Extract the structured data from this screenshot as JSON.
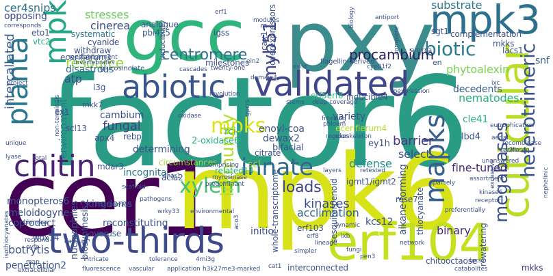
{
  "wordcloud": {
    "colors": {
      "yellow": "#d8e219",
      "lime": "#a0da39",
      "green": "#4ac16d",
      "teal": "#1fa187",
      "cyan": "#277f8e",
      "blue": "#365c8d",
      "indigo": "#46327e",
      "purple": "#440154"
    },
    "words": {
      "factor6": "factor6",
      "cer1": "cer1",
      "mpk6": "mpk6",
      "pxy": "pxy",
      "gcc": "gcc",
      "validated": "validated",
      "abiotic": "abiotic",
      "erf104": "erf104",
      "two_thirds": "two-thirds",
      "cuticular": "cuticular",
      "mpk3": "mpk3",
      "chitin": "chitin",
      "planta": "planta",
      "mpk": "mpk",
      "innate": "innate",
      "mapks": "mapks",
      "mpks": "mpks",
      "xylem": "xylem",
      "biotic": "biotic",
      "heterotrimeric": "heterotrimeric",
      "procambium": "procambium",
      "centromere": "centromere",
      "myb51": "myb51",
      "megabases": "megabases",
      "immunity": "immunity",
      "resource": "resource",
      "loads": "loads",
      "intercallated": "intercallated",
      "cer4snips": "cer4snips",
      "stresses": "stresses",
      "cinerea": "cinerea",
      "opposing": "opposing",
      "substrate": "substrate",
      "phytoalexin": "phytoalexin",
      "nematodes": "nematodes",
      "decedents": "decedents",
      "variety": "variety",
      "cambium": "cambium",
      "fungal": "fungal",
      "barrier": "barrier",
      "kinases": "kinases",
      "binary": "binary",
      "select": "select",
      "defense": "defense",
      "botrytis": "botrytis",
      "acclimation": "acclimation",
      "fine_tuned": "fine-tuned",
      "mkks": "mkks",
      "snf": "snf",
      "environment": "environment",
      "atp": "atp",
      "disastrous": "disastrous",
      "eto1": "eto1",
      "vtc2": "vtc2",
      "systematic": "systematic",
      "cyanide": "cyanide",
      "withdraw": "withdraw",
      "ecerifierum1": "ecerifierum1",
      "analogue": "analogue",
      "pbi425": "pbi425",
      "igss": "igss",
      "erf5erf6": "erf5erf6",
      "inducible4": "inducible4",
      "enoyl_coa": "enoyl-coa",
      "dewax2": "dewax2",
      "bifacial": "bifacial",
      "citrate": "citrate",
      "rci4": "rci4",
      "oxidase_2": "2-oxidase6",
      "ey1h": "ey1h",
      "lbd4": "lbd4",
      "cle41": "cle41",
      "ecerifierum4": "ecerifierum4",
      "rebp": "rebp",
      "determining": "determining",
      "apx4": "apx4",
      "mdar3": "mdar3",
      "incognita": "incognita",
      "circumstances": "circumstances",
      "scl": "scl",
      "related14": "related14",
      "acla2": "acla2",
      "igmt1_igmt2": "igmt1/igmt2",
      "rose7": "rose7",
      "alkane_forming": "alkane-forming",
      "thiocyanate": "thiocyanate",
      "monopteros6": "monopteros6",
      "meloidogyne": "meloidogyne",
      "coproduct": "coproduct",
      "kingdoms": "kingdoms",
      "reconstituting": "reconstituting",
      "nucleophiles": "nucleophiles",
      "biosynthesis2": "biosynthesis2",
      "wox14": "wox14",
      "overuse": "overuse",
      "penetration2": "penetration2",
      "sesquiterpenoid": "sesquiterpenoid",
      "whole_transcriptome": "whole-transcriptome",
      "kcs12": "kcs12",
      "initio": "initio",
      "erf103": "erf103",
      "interconnected": "interconnected",
      "chitooctaose": "chitooctaose",
      "rewatering": "rewatering",
      "complementation": "complementation",
      "sgt1": "sgt1",
      "lacs1": "lacs1",
      "cax1_3": "cax1-3",
      "milestones": "milestones",
      "overexpressors": "overexpressors",
      "inducibility": "inducibility",
      "mkk7": "mkk7",
      "i3g": "i3g",
      "ex1": "ex1",
      "scl13": "scl13",
      "glucosinolate": "glucosinolate",
      "flagellin_derived": "flagellin-derived",
      "erf1": "erf1",
      "modules": "modules",
      "biology": "biology",
      "antiport": "antiport",
      "complete": "complete",
      "amirna": "amirna",
      "rackla": "rackla",
      "corresponds": "corresponds",
      "invertebrates": "invertebrates",
      "reestablishment": "reestablishment",
      "cascades": "cascades",
      "twenty_one": "twenty-one",
      "ein2": "ein2",
      "exist": "exist",
      "cyp81f2": "cyp81f2",
      "en": "en",
      "domain4": "domain4",
      "revolution": "revolution",
      "deep_coverage": "deep-coverage",
      "coexpression": "coexpression",
      "ixc": "ixc",
      "stems": "stems",
      "gpcrs": "gpcrs",
      "freezing": "freezing",
      "phloem": "phloem",
      "regulon": "regulon",
      "exoskeleton": "exoskeleton",
      "eutrophication": "eutrophication",
      "aerial": "aerial",
      "recombinase": "recombinase",
      "cry2h_seq": "cry2h-seq",
      "unanswered": "unanswered",
      "nephelinic": "nephelinic",
      "excessive": "excessive",
      "oxidase": "oxidase",
      "comprising": "comprising",
      "retested": "retested",
      "assortment": "assortment",
      "sparsely": "sparsely",
      "kinase6": "kinase6",
      "receptor": "receptor",
      "preferentially": "preferentially",
      "non_terminals": "non-terminals",
      "project": "project",
      "unique": "unique",
      "lyase": "lyase",
      "total": "total",
      "dhar1": "dhar1",
      "layers": "layers",
      "myrosinase": "myrosinase",
      "predominant": "predominant",
      "microarrays": "microarrays",
      "scaffold": "scaffold",
      "pathogens": "pathogens",
      "wrky33": "wrky33",
      "environmental": "environmental",
      "aco3": "aco3",
      "isothiocyanates": "isothiocyanates",
      "biomass": "biomass",
      "respond": "respond",
      "eyfp": "eyfp",
      "calcium": "calcium",
      "map": "map",
      "intricate": "intricate",
      "tolerance": "tolerance",
      "4mi3g": "4mi3g",
      "application": "application",
      "h3k27me3_marked": "h3k27me3-marked",
      "vascular": "vascular",
      "fluorescence": "fluorescence",
      "extracellular": "extracellular",
      "cat1": "cat1",
      "simpler": "simpler",
      "lineage": "lineage",
      "erf8": "erf8",
      "ixb": "ixb",
      "dynamic": "dynamic",
      "network": "network",
      "fungi": "fungi",
      "pen3": "pen3",
      "lacs2": "lacs2",
      "catabolites": "catabolites"
    }
  }
}
